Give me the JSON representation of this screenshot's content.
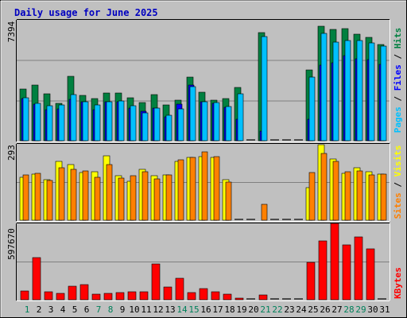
{
  "chart_data": [
    {
      "type": "bar",
      "title": "Daily usage for June 2025",
      "ymax": 7394,
      "ymax_label": "7394",
      "right_label": [
        "Pages",
        "Files",
        "Hits"
      ],
      "categories": [
        "1",
        "2",
        "3",
        "4",
        "5",
        "6",
        "7",
        "8",
        "9",
        "10",
        "11",
        "12",
        "13",
        "14",
        "15",
        "16",
        "17",
        "18",
        "19",
        "20",
        "21",
        "22",
        "23",
        "24",
        "25",
        "26",
        "27",
        "28",
        "29",
        "30",
        "31"
      ],
      "weekend_days": [
        "1",
        "7",
        "8",
        "14",
        "15",
        "21",
        "22",
        "28",
        "29"
      ],
      "series": [
        {
          "name": "Hits",
          "color": "#008040",
          "values": [
            3150,
            3400,
            2850,
            2300,
            3950,
            2750,
            2600,
            2900,
            2900,
            2650,
            2350,
            2800,
            2200,
            2500,
            3900,
            2950,
            2500,
            2600,
            3250,
            0,
            6600,
            0,
            0,
            0,
            4350,
            7000,
            6800,
            6850,
            6500,
            6300,
            5900
          ]
        },
        {
          "name": "Files",
          "color": "#0000ff",
          "values": [
            2600,
            2250,
            1900,
            1950,
            2550,
            2400,
            1900,
            2400,
            2400,
            2000,
            1800,
            2000,
            1450,
            2250,
            3400,
            2400,
            2300,
            2050,
            1300,
            0,
            600,
            0,
            0,
            0,
            1300,
            4600,
            4750,
            5200,
            5000,
            4950,
            4650
          ]
        },
        {
          "name": "Pages",
          "color": "#00c0ff",
          "values": [
            2650,
            2300,
            2150,
            2200,
            2800,
            2400,
            2200,
            2400,
            2450,
            2150,
            1700,
            2000,
            1550,
            1950,
            3300,
            2400,
            2350,
            2100,
            2850,
            0,
            6350,
            0,
            0,
            0,
            3900,
            6550,
            6050,
            6150,
            6150,
            6000,
            5800
          ]
        }
      ]
    },
    {
      "type": "bar",
      "ymax": 293,
      "ymax_label": "293",
      "right_label": [
        "Sites",
        "Visits"
      ],
      "categories": [
        "1",
        "2",
        "3",
        "4",
        "5",
        "6",
        "7",
        "8",
        "9",
        "10",
        "11",
        "12",
        "13",
        "14",
        "15",
        "16",
        "17",
        "18",
        "19",
        "20",
        "21",
        "22",
        "23",
        "24",
        "25",
        "26",
        "27",
        "28",
        "29",
        "30",
        "31"
      ],
      "series": [
        {
          "name": "Visits",
          "color": "#ffff00",
          "values": [
            165,
            178,
            155,
            225,
            215,
            182,
            185,
            248,
            170,
            150,
            195,
            170,
            175,
            225,
            240,
            245,
            242,
            155,
            0,
            0,
            0,
            0,
            0,
            0,
            125,
            290,
            235,
            180,
            200,
            185,
            178
          ]
        },
        {
          "name": "Sites",
          "color": "#ff8000",
          "values": [
            175,
            180,
            152,
            200,
            195,
            190,
            165,
            215,
            162,
            172,
            185,
            158,
            175,
            233,
            240,
            262,
            243,
            148,
            0,
            0,
            62,
            0,
            0,
            0,
            182,
            255,
            225,
            185,
            190,
            173,
            178
          ]
        }
      ]
    },
    {
      "type": "bar",
      "ymax": 597670,
      "ymax_label": "597670",
      "right_label": [
        "KBytes"
      ],
      "categories": [
        "1",
        "2",
        "3",
        "4",
        "5",
        "6",
        "7",
        "8",
        "9",
        "10",
        "11",
        "12",
        "13",
        "14",
        "15",
        "16",
        "17",
        "18",
        "19",
        "20",
        "21",
        "22",
        "23",
        "24",
        "25",
        "26",
        "27",
        "28",
        "29",
        "30",
        "31"
      ],
      "series": [
        {
          "name": "KBytes",
          "color": "#ff0000",
          "values": [
            70000,
            330000,
            60000,
            50000,
            105000,
            120000,
            45000,
            50000,
            55000,
            60000,
            65000,
            280000,
            100000,
            170000,
            55000,
            85000,
            60000,
            45000,
            10000,
            0,
            35000,
            0,
            0,
            0,
            295000,
            460000,
            600000,
            430000,
            490000,
            400000,
            0
          ]
        }
      ]
    }
  ]
}
